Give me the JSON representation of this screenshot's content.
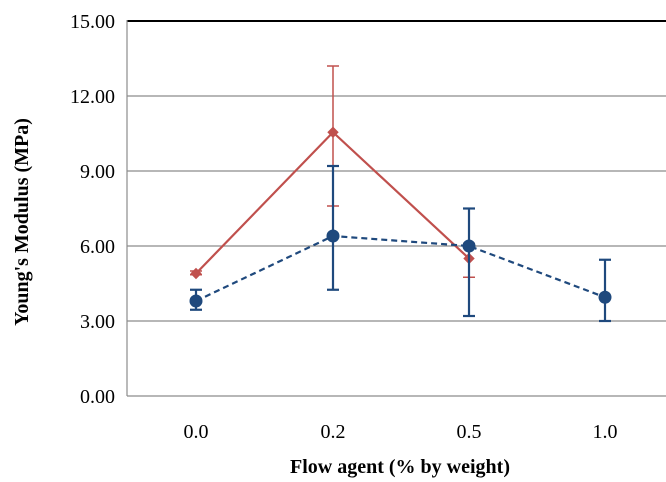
{
  "chart_data": {
    "type": "line",
    "xlabel": "Flow agent (% by weight)",
    "ylabel": "Young's Modulus (MPa)",
    "categories": [
      "0.0",
      "0.2",
      "0.5",
      "1.0"
    ],
    "ylim": [
      0,
      15
    ],
    "yticks": [
      "0.00",
      "3.00",
      "6.00",
      "9.00",
      "12.00",
      "15.00"
    ],
    "grid": true,
    "legend": "none",
    "series": [
      {
        "color": "#c0504d",
        "line_style": "solid",
        "marker": "diamond",
        "values": [
          4.9,
          10.55,
          5.5,
          null
        ],
        "error_low": [
          0.05,
          2.95,
          0.75,
          null
        ],
        "error_high": [
          0.1,
          2.65,
          0.6,
          null
        ]
      },
      {
        "color": "#1f497d",
        "line_style": "dashed",
        "marker": "circle",
        "values": [
          3.8,
          6.4,
          6.0,
          3.95
        ],
        "error_low": [
          0.35,
          2.15,
          2.8,
          0.95
        ],
        "error_high": [
          0.45,
          2.8,
          1.5,
          1.5
        ]
      }
    ]
  }
}
